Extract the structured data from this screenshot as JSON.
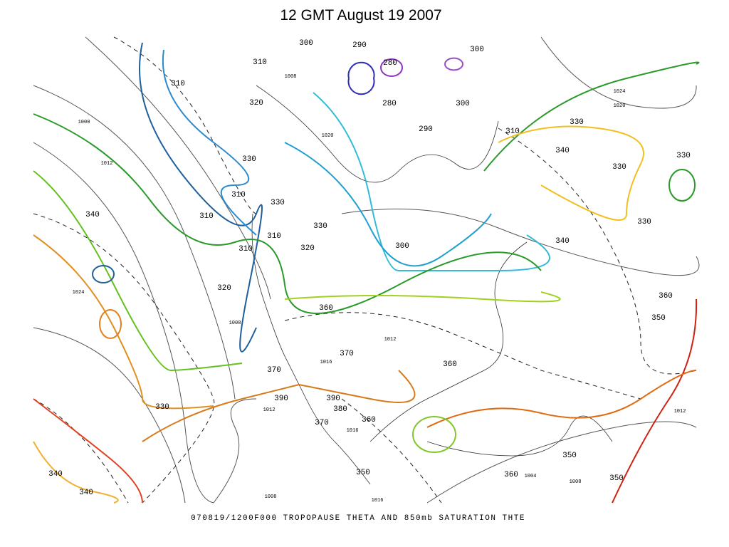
{
  "title": "12 GMT August 19 2007",
  "caption": "070819/1200F000 TROPOPAUSE THETA AND 850mb SATURATION THTE",
  "contour_labels": [
    "300",
    "290",
    "280",
    "300",
    "310",
    "310",
    "320",
    "280",
    "300",
    "290",
    "310",
    "330",
    "340",
    "330",
    "330",
    "330",
    "310",
    "330",
    "340",
    "310",
    "330",
    "330",
    "340",
    "310",
    "320",
    "310",
    "300",
    "320",
    "360",
    "360",
    "350",
    "370",
    "360",
    "370",
    "330",
    "390",
    "390",
    "380",
    "360",
    "370",
    "350",
    "350",
    "360",
    "350",
    "340",
    "340"
  ],
  "isobar_labels": [
    "1000",
    "1012",
    "1024",
    "1020",
    "1008",
    "1016",
    "1012",
    "1024",
    "1020",
    "1008",
    "1004",
    "1008",
    "1016",
    "1012",
    "1016",
    "1012",
    "1008"
  ]
}
